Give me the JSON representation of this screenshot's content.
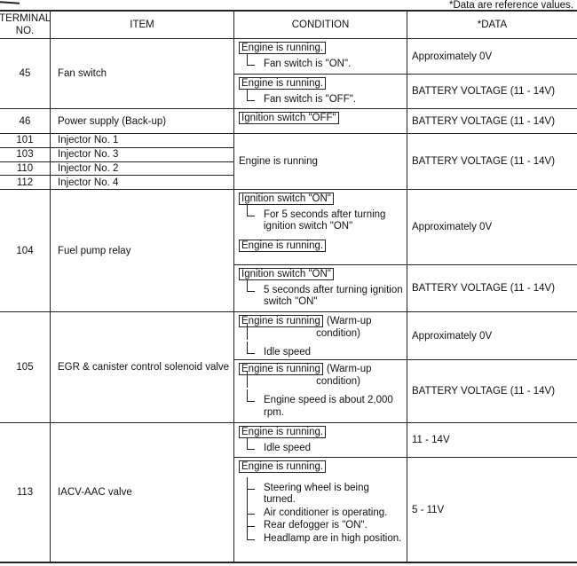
{
  "note": "*Data are reference values.",
  "headers": {
    "terminal": "TERMINAL NO.",
    "item": "ITEM",
    "condition": "CONDITION",
    "data": "*DATA"
  },
  "rows": [
    {
      "terminals": [
        "45"
      ],
      "items": [
        "Fan switch"
      ],
      "conditions": [
        {
          "blocks": [
            {
              "box": "Engine is running.",
              "branches": [
                "Fan switch is \"ON\"."
              ]
            }
          ],
          "data": "Approximately 0V"
        },
        {
          "blocks": [
            {
              "box": "Engine is running.",
              "branches": [
                "Fan switch is \"OFF\"."
              ]
            }
          ],
          "data": "BATTERY VOLTAGE (11 - 14V)"
        }
      ]
    },
    {
      "terminals": [
        "46"
      ],
      "items": [
        "Power supply (Back-up)"
      ],
      "conditions": [
        {
          "blocks": [
            {
              "box": "Ignition switch \"OFF\"",
              "branches": []
            }
          ],
          "data": "BATTERY VOLTAGE (11 - 14V)"
        }
      ]
    },
    {
      "terminals": [
        "101",
        "103",
        "110",
        "112"
      ],
      "items": [
        "Injector No. 1",
        "Injector No. 3",
        "Injector No. 2",
        "Injector No. 4"
      ],
      "conditions": [
        {
          "text": "Engine is running",
          "data": "BATTERY VOLTAGE (11 - 14V)"
        }
      ]
    },
    {
      "terminals": [
        "104"
      ],
      "items": [
        "Fuel pump relay"
      ],
      "conditions": [
        {
          "blocks": [
            {
              "box": "Ignition switch \"ON\"",
              "branches": [
                "For 5 seconds after turning ignition switch \"ON\""
              ]
            },
            {
              "box": "Engine is running.",
              "branches": []
            }
          ],
          "data": "Approximately 0V"
        },
        {
          "blocks": [
            {
              "box": "Ignition switch \"ON\"",
              "branches": [
                "5 seconds after turning ignition switch \"ON\""
              ]
            }
          ],
          "data": "BATTERY VOLTAGE (11 - 14V)"
        }
      ]
    },
    {
      "terminals": [
        "105"
      ],
      "items": [
        "EGR & canister control solenoid valve"
      ],
      "conditions": [
        {
          "blocks": [
            {
              "box": "Engine is running",
              "suffix": "(Warm-up",
              "suffix2": "condition)",
              "branches": [
                "Idle speed"
              ]
            }
          ],
          "data": "Approximately 0V"
        },
        {
          "blocks": [
            {
              "box": "Engine is running",
              "suffix": "(Warm-up",
              "suffix2": "condition)",
              "branches": [
                "Engine speed is about 2,000 rpm."
              ]
            }
          ],
          "data": "BATTERY VOLTAGE (11 - 14V)"
        }
      ]
    },
    {
      "terminals": [
        "113"
      ],
      "items": [
        "IACV-AAC valve"
      ],
      "conditions": [
        {
          "blocks": [
            {
              "box": "Engine is running.",
              "branches": [
                "Idle speed"
              ]
            }
          ],
          "data": "11 - 14V"
        },
        {
          "blocks": [
            {
              "box": "Engine is running.",
              "branches": [
                "Steering wheel is being turned.",
                "Air conditioner is operating.",
                "Rear defogger is \"ON\".",
                "Headlamp are in high position."
              ]
            }
          ],
          "data": "5 - 11V"
        }
      ]
    }
  ]
}
